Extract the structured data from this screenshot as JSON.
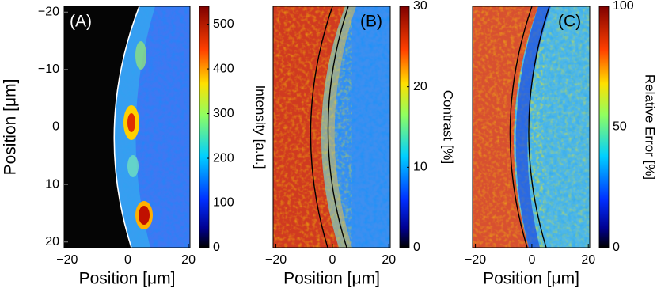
{
  "chart_data": [
    {
      "type": "heatmap",
      "panel_label": "(A)",
      "xlabel": "Position [μm]",
      "ylabel": "Position [μm]",
      "xlim": [
        -21,
        20.5
      ],
      "xticks": [
        {
          "value": -20,
          "label": "−20"
        },
        0,
        20
      ],
      "ylim": [
        -21,
        21
      ],
      "y_reversed": true,
      "yticks": [
        {
          "value": -20,
          "label": "−20"
        },
        {
          "value": -10,
          "label": "−10"
        },
        0,
        10,
        20
      ],
      "colormap": "jet",
      "colorbar": {
        "label": "Intensity [a.u.]",
        "lim": [
          0,
          540
        ],
        "ticks": [
          0,
          100,
          200,
          300,
          400,
          500
        ]
      }
    },
    {
      "type": "heatmap",
      "panel_label": "(B)",
      "xlabel": "Position [μm]",
      "xlim": [
        -21,
        20.5
      ],
      "xticks": [
        {
          "value": -20,
          "label": "−20"
        },
        0,
        20
      ],
      "colormap": "jet",
      "colorbar": {
        "label": "Contrast [%]",
        "lim": [
          0,
          30
        ],
        "ticks": [
          0,
          10,
          20,
          30
        ]
      }
    },
    {
      "type": "heatmap",
      "panel_label": "(C)",
      "xlabel": "Position [μm]",
      "xlim": [
        -21,
        20.5
      ],
      "xticks": [
        {
          "value": -20,
          "label": "−20"
        },
        0,
        20
      ],
      "colormap": "jet",
      "colorbar": {
        "label": "Relative Error [%]",
        "lim": [
          0,
          100
        ],
        "ticks": [
          0,
          50,
          100
        ]
      }
    }
  ]
}
